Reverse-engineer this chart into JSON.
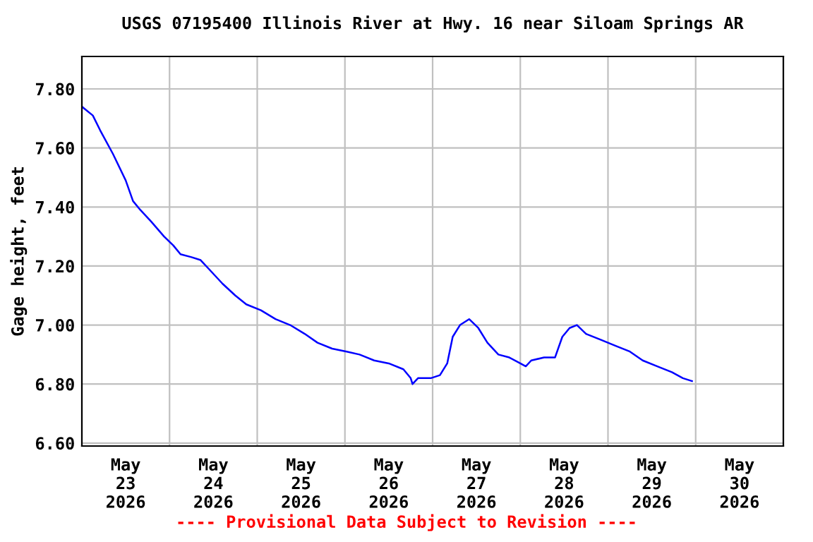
{
  "chart_data": {
    "type": "line",
    "title": "USGS 07195400 Illinois River at Hwy. 16 near Siloam Springs AR",
    "ylabel": "Gage height, feet",
    "annotations": [
      "---- Provisional Data Subject to Revision ----"
    ],
    "x": [
      "2026-05-23T00:00",
      "2026-05-23T03:00",
      "2026-05-23T05:00",
      "2026-05-23T08:30",
      "2026-05-23T12:00",
      "2026-05-23T14:00",
      "2026-05-23T16:00",
      "2026-05-23T19:00",
      "2026-05-23T22:30",
      "2026-05-24T01:00",
      "2026-05-24T03:00",
      "2026-05-24T06:00",
      "2026-05-24T08:30",
      "2026-05-24T11:30",
      "2026-05-24T14:30",
      "2026-05-24T18:00",
      "2026-05-24T21:00",
      "2026-05-25T01:00",
      "2026-05-25T05:00",
      "2026-05-25T09:00",
      "2026-05-25T13:00",
      "2026-05-25T16:30",
      "2026-05-25T20:30",
      "2026-05-26T00:30",
      "2026-05-26T04:00",
      "2026-05-26T08:00",
      "2026-05-26T12:00",
      "2026-05-26T16:00",
      "2026-05-26T18:00",
      "2026-05-26T18:30",
      "2026-05-26T20:00",
      "2026-05-26T23:30",
      "2026-05-27T02:00",
      "2026-05-27T04:00",
      "2026-05-27T05:30",
      "2026-05-27T07:30",
      "2026-05-27T10:00",
      "2026-05-27T12:30",
      "2026-05-27T15:00",
      "2026-05-27T18:00",
      "2026-05-27T21:00",
      "2026-05-28T00:00",
      "2026-05-28T01:30",
      "2026-05-28T03:00",
      "2026-05-28T06:30",
      "2026-05-28T09:30",
      "2026-05-28T11:30",
      "2026-05-28T13:30",
      "2026-05-28T15:30",
      "2026-05-28T18:00",
      "2026-05-28T22:00",
      "2026-05-29T02:00",
      "2026-05-29T06:00",
      "2026-05-29T09:30",
      "2026-05-29T13:30",
      "2026-05-29T17:30",
      "2026-05-29T20:30",
      "2026-05-29T23:00"
    ],
    "series": [
      {
        "color": "#0000ff",
        "values": [
          7.74,
          7.71,
          7.66,
          7.58,
          7.49,
          7.42,
          7.39,
          7.35,
          7.3,
          7.27,
          7.24,
          7.23,
          7.22,
          7.18,
          7.14,
          7.1,
          7.07,
          7.05,
          7.02,
          7.0,
          6.97,
          6.94,
          6.92,
          6.91,
          6.9,
          6.88,
          6.87,
          6.85,
          6.82,
          6.8,
          6.82,
          6.82,
          6.83,
          6.87,
          6.96,
          7.0,
          7.02,
          6.99,
          6.94,
          6.9,
          6.89,
          6.87,
          6.86,
          6.88,
          6.89,
          6.89,
          6.96,
          6.99,
          7.0,
          6.97,
          6.95,
          6.93,
          6.91,
          6.88,
          6.86,
          6.84,
          6.82,
          6.81
        ]
      }
    ],
    "xlim": [
      "2026-05-23T00:00",
      "2026-05-31T00:00"
    ],
    "xticks": [
      {
        "value": "2026-05-23T00:00",
        "label": null
      },
      {
        "value": "2026-05-24T00:00",
        "label": null
      },
      {
        "value": "2026-05-25T00:00",
        "label": null
      },
      {
        "value": "2026-05-26T00:00",
        "label": null
      },
      {
        "value": "2026-05-27T00:00",
        "label": null
      },
      {
        "value": "2026-05-28T00:00",
        "label": null
      },
      {
        "value": "2026-05-29T00:00",
        "label": null
      },
      {
        "value": "2026-05-30T00:00",
        "label": null
      },
      {
        "value": "2026-05-31T00:00",
        "label": null
      },
      {
        "value": "2026-05-23T12:00",
        "label": "May\n23\n2026"
      },
      {
        "value": "2026-05-24T12:00",
        "label": "May\n24\n2026"
      },
      {
        "value": "2026-05-25T12:00",
        "label": "May\n25\n2026"
      },
      {
        "value": "2026-05-26T12:00",
        "label": "May\n26\n2026"
      },
      {
        "value": "2026-05-27T12:00",
        "label": "May\n27\n2026"
      },
      {
        "value": "2026-05-28T12:00",
        "label": "May\n28\n2026"
      },
      {
        "value": "2026-05-29T12:00",
        "label": "May\n29\n2026"
      },
      {
        "value": "2026-05-30T12:00",
        "label": "May\n30\n2026"
      }
    ],
    "ylim": [
      6.59,
      7.91
    ],
    "yticks": [
      {
        "value": 6.6,
        "label": "6.60"
      },
      {
        "value": 6.8,
        "label": "6.80"
      },
      {
        "value": 7.0,
        "label": "7.00"
      },
      {
        "value": 7.2,
        "label": "7.20"
      },
      {
        "value": 7.4,
        "label": "7.40"
      },
      {
        "value": 7.6,
        "label": "7.60"
      },
      {
        "value": 7.8,
        "label": "7.80"
      }
    ],
    "grid": true,
    "legend": false,
    "marker": "none",
    "line_style": "solid"
  }
}
